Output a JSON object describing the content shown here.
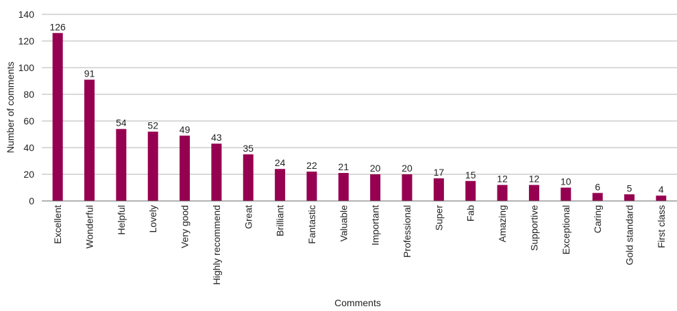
{
  "chart_data": {
    "type": "bar",
    "categories": [
      "Excellent",
      "Wonderful",
      "Helpful",
      "Lovely",
      "Very good",
      "Highly recommend",
      "Great",
      "Brilliant",
      "Fantastic",
      "Valuable",
      "Important",
      "Professional",
      "Super",
      "Fab",
      "Amazing",
      "Supportive",
      "Exceptional",
      "Caring",
      "Gold standard",
      "First class"
    ],
    "values": [
      126,
      91,
      54,
      52,
      49,
      43,
      35,
      24,
      22,
      21,
      20,
      20,
      17,
      15,
      12,
      12,
      10,
      6,
      5,
      4
    ],
    "data_labels": [
      "126",
      "91",
      "54",
      "52",
      "49",
      "43",
      "35",
      "24",
      "22",
      "21",
      "20",
      "20",
      "17",
      "15",
      "12",
      "12",
      "10",
      "6",
      "5",
      "4"
    ],
    "xlabel": "Comments",
    "ylabel": "Number of comments",
    "ylim": [
      0,
      140
    ],
    "yticks": [
      0,
      20,
      40,
      60,
      80,
      100,
      120,
      140
    ],
    "ytick_labels": [
      "0",
      "20",
      "40",
      "60",
      "80",
      "100",
      "120",
      "140"
    ],
    "grid": true,
    "legend": "none",
    "bar_color": "#960050"
  }
}
